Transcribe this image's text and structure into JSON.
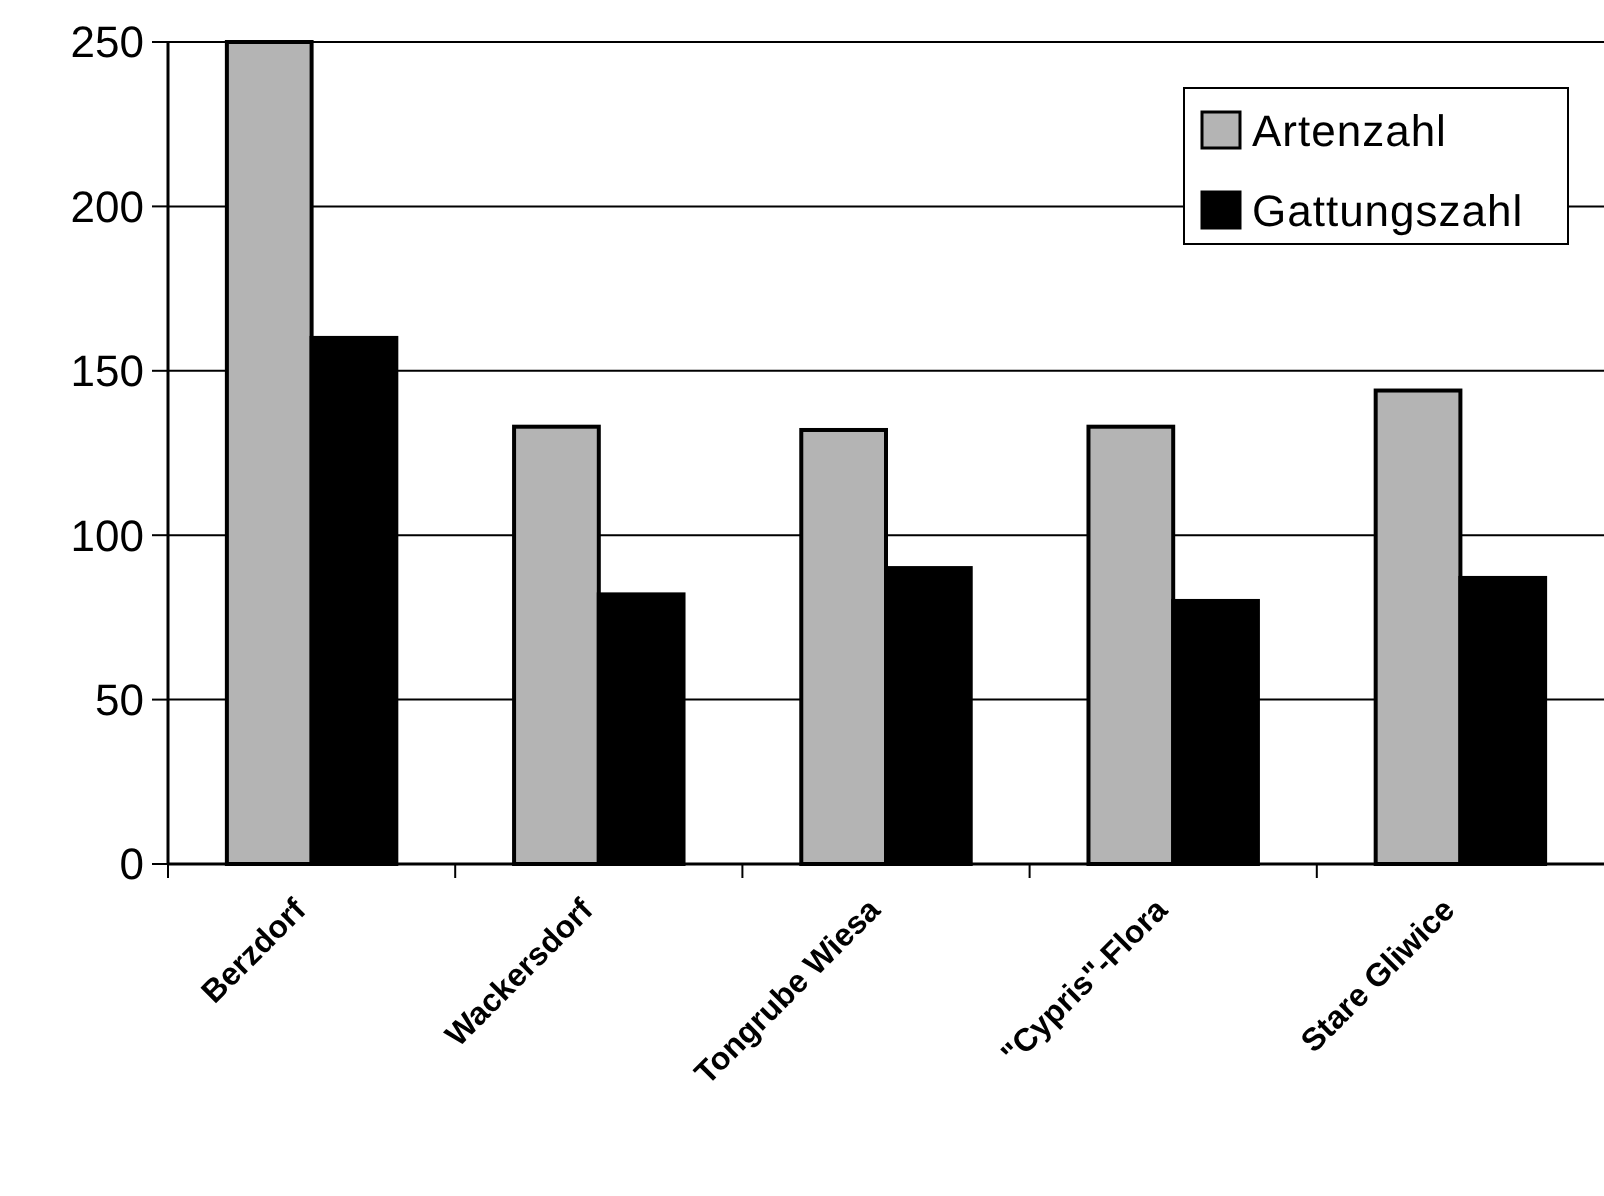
{
  "chart_data": {
    "type": "bar",
    "categories": [
      "Berzdorf",
      "Wackersdorf",
      "Tongrube Wiesa",
      "\"Cypris\"-Flora",
      "Stare Gliwice"
    ],
    "series": [
      {
        "name": "Artenzahl",
        "color": "#b4b4b4",
        "values": [
          250,
          133,
          132,
          133,
          144
        ]
      },
      {
        "name": "Gattungszahl",
        "color": "#000000",
        "values": [
          160,
          82,
          90,
          80,
          87
        ]
      }
    ],
    "ylim": [
      0,
      250
    ],
    "yticks": [
      0,
      50,
      100,
      150,
      200,
      250
    ],
    "grid": "y",
    "legend": "top right"
  }
}
